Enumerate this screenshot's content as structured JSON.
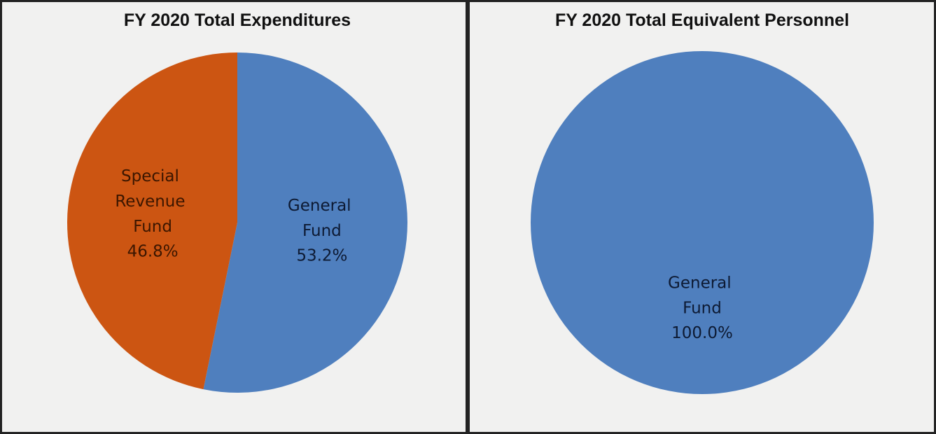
{
  "chart_data": [
    {
      "type": "pie",
      "title": "FY 2020 Total Expenditures",
      "categories": [
        "General Fund",
        "Special Revenue Fund"
      ],
      "values": [
        53.2,
        46.8
      ],
      "value_labels": [
        "53.2%",
        "46.8%"
      ],
      "colors": [
        "#4f7fbe",
        "#cc5512"
      ]
    },
    {
      "type": "pie",
      "title": "FY 2020 Total Equivalent Personnel",
      "categories": [
        "General Fund"
      ],
      "values": [
        100.0
      ],
      "value_labels": [
        "100.0%"
      ],
      "colors": [
        "#4f7fbe"
      ]
    }
  ]
}
